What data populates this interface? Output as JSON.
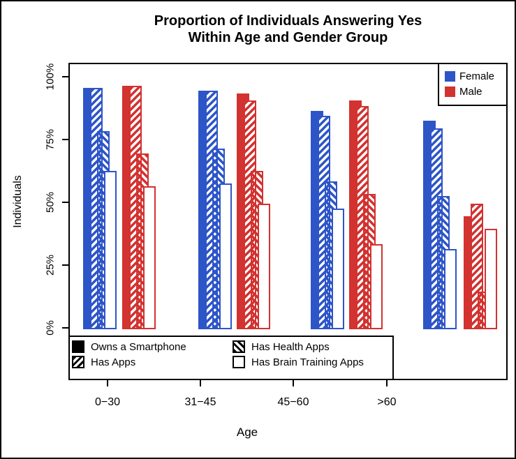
{
  "chart_data": {
    "type": "bar",
    "title_lines": [
      "Proportion of Individuals Answering Yes",
      "Within Age and Gender Group"
    ],
    "xlabel": "Age",
    "ylabel": "Individuals",
    "categories": [
      "0−30",
      "31−45",
      "45−60",
      ">60"
    ],
    "ytick_labels": [
      "0%",
      "25%",
      "50%",
      "75%",
      "100%"
    ],
    "ytick_values": [
      0,
      25,
      50,
      75,
      100
    ],
    "ylim": [
      0,
      100
    ],
    "grid": "off",
    "legend_gender_position": "top-right-inside",
    "legend_pattern_position": "bottom-inside",
    "colors": {
      "Female": "#2d55c8",
      "Male": "#d23230",
      "axis": "#000000"
    },
    "series": [
      {
        "gender": "Female",
        "name": "Owns a Smartphone",
        "pattern": "solid",
        "values": [
          96,
          95,
          87,
          83
        ]
      },
      {
        "gender": "Female",
        "name": "Has Apps",
        "pattern": "diag-forward",
        "values": [
          96,
          95,
          85,
          80
        ]
      },
      {
        "gender": "Female",
        "name": "Has Health Apps",
        "pattern": "diag-back",
        "values": [
          79,
          72,
          59,
          53
        ]
      },
      {
        "gender": "Female",
        "name": "Has Brain Training Apps",
        "pattern": "open",
        "values": [
          63,
          58,
          48,
          32
        ]
      },
      {
        "gender": "Male",
        "name": "Owns a Smartphone",
        "pattern": "solid",
        "values": [
          97,
          94,
          91,
          45
        ]
      },
      {
        "gender": "Male",
        "name": "Has Apps",
        "pattern": "diag-forward",
        "values": [
          97,
          91,
          89,
          50
        ]
      },
      {
        "gender": "Male",
        "name": "Has Health Apps",
        "pattern": "diag-back",
        "values": [
          70,
          63,
          54,
          15
        ]
      },
      {
        "gender": "Male",
        "name": "Has Brain Training Apps",
        "pattern": "open",
        "values": [
          57,
          50,
          34,
          40
        ]
      }
    ],
    "legend_gender": [
      {
        "label": "Female",
        "color_key": "Female"
      },
      {
        "label": "Male",
        "color_key": "Male"
      }
    ],
    "legend_patterns": [
      {
        "label": "Owns a Smartphone",
        "pattern": "solid"
      },
      {
        "label": "Has Apps",
        "pattern": "diag-forward"
      },
      {
        "label": "Has Health Apps",
        "pattern": "diag-back"
      },
      {
        "label": "Has Brain Training Apps",
        "pattern": "open"
      }
    ]
  }
}
